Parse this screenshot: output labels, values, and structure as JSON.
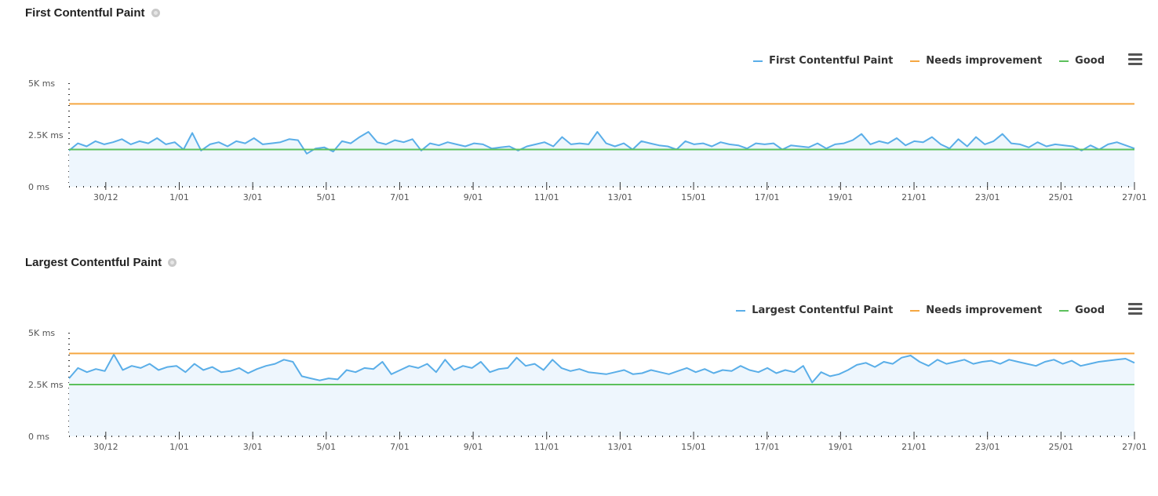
{
  "chart_data": [
    {
      "type": "line",
      "title": "First Contentful Paint",
      "y_ticks": [
        "5K ms",
        "2.5K ms",
        "0 ms"
      ],
      "ylim": [
        0,
        5000
      ],
      "x_start": "29/12",
      "x_end": "27/01",
      "x_ticks": [
        "30/12",
        "1/01",
        "3/01",
        "5/01",
        "7/01",
        "9/01",
        "11/01",
        "13/01",
        "15/01",
        "17/01",
        "19/01",
        "21/01",
        "23/01",
        "25/01",
        "27/01"
      ],
      "legend": [
        "First Contentful Paint",
        "Needs improvement",
        "Good"
      ],
      "series": [
        {
          "name": "First Contentful Paint",
          "color": "#5aaee8",
          "values": [
            1750,
            2100,
            1950,
            2200,
            2050,
            2150,
            2300,
            2050,
            2200,
            2100,
            2350,
            2050,
            2150,
            1800,
            2600,
            1750,
            2050,
            2150,
            1950,
            2200,
            2100,
            2350,
            2050,
            2100,
            2150,
            2300,
            2250,
            1600,
            1850,
            1900,
            1700,
            2200,
            2100,
            2400,
            2650,
            2150,
            2050,
            2250,
            2150,
            2300,
            1750,
            2100,
            2000,
            2150,
            2050,
            1950,
            2100,
            2050,
            1850,
            1900,
            1950,
            1750,
            1950,
            2050,
            2150,
            1950,
            2400,
            2050,
            2100,
            2050,
            2650,
            2100,
            1950,
            2100,
            1800,
            2200,
            2100,
            2000,
            1950,
            1800,
            2200,
            2050,
            2100,
            1950,
            2150,
            2050,
            2000,
            1850,
            2100,
            2050,
            2100,
            1800,
            2000,
            1950,
            1900,
            2100,
            1850,
            2050,
            2100,
            2250,
            2550,
            2050,
            2200,
            2100,
            2350,
            2000,
            2200,
            2150,
            2400,
            2050,
            1850,
            2300,
            1950,
            2400,
            2050,
            2200,
            2550,
            2100,
            2050,
            1900,
            2150,
            1950,
            2050,
            2000,
            1950,
            1750,
            2000,
            1800,
            2050,
            2150,
            2000,
            1850
          ]
        }
      ],
      "thresholds": [
        {
          "name": "Needs improvement",
          "value": 4000,
          "color": "#f5a742"
        },
        {
          "name": "Good",
          "value": 1800,
          "color": "#5cc05c"
        }
      ]
    },
    {
      "type": "line",
      "title": "Largest Contentful Paint",
      "y_ticks": [
        "5K ms",
        "2.5K ms",
        "0 ms"
      ],
      "ylim": [
        0,
        5000
      ],
      "x_start": "29/12",
      "x_end": "27/01",
      "x_ticks": [
        "30/12",
        "1/01",
        "3/01",
        "5/01",
        "7/01",
        "9/01",
        "11/01",
        "13/01",
        "15/01",
        "17/01",
        "19/01",
        "21/01",
        "23/01",
        "25/01",
        "27/01"
      ],
      "legend": [
        "Largest Contentful Paint",
        "Needs improvement",
        "Good"
      ],
      "series": [
        {
          "name": "Largest Contentful Paint",
          "color": "#5aaee8",
          "values": [
            2800,
            3300,
            3100,
            3250,
            3150,
            3950,
            3200,
            3400,
            3300,
            3500,
            3200,
            3350,
            3400,
            3100,
            3500,
            3200,
            3350,
            3100,
            3150,
            3300,
            3050,
            3250,
            3400,
            3500,
            3700,
            3600,
            2900,
            2800,
            2700,
            2800,
            2750,
            3200,
            3100,
            3300,
            3250,
            3600,
            3000,
            3200,
            3400,
            3300,
            3500,
            3100,
            3700,
            3200,
            3400,
            3300,
            3600,
            3100,
            3250,
            3300,
            3800,
            3400,
            3500,
            3200,
            3700,
            3300,
            3150,
            3250,
            3100,
            3050,
            3000,
            3100,
            3200,
            3000,
            3050,
            3200,
            3100,
            3000,
            3150,
            3300,
            3100,
            3250,
            3050,
            3200,
            3150,
            3400,
            3200,
            3100,
            3300,
            3050,
            3200,
            3100,
            3400,
            2600,
            3100,
            2900,
            3000,
            3200,
            3450,
            3550,
            3350,
            3600,
            3500,
            3800,
            3900,
            3600,
            3400,
            3700,
            3500,
            3600,
            3700,
            3500,
            3600,
            3650,
            3500,
            3700,
            3600,
            3500,
            3400,
            3600,
            3700,
            3500,
            3650,
            3400,
            3500,
            3600,
            3650,
            3700,
            3750,
            3550
          ]
        }
      ],
      "thresholds": [
        {
          "name": "Needs improvement",
          "value": 4000,
          "color": "#f5a742"
        },
        {
          "name": "Good",
          "value": 2500,
          "color": "#5cc05c"
        }
      ]
    }
  ]
}
